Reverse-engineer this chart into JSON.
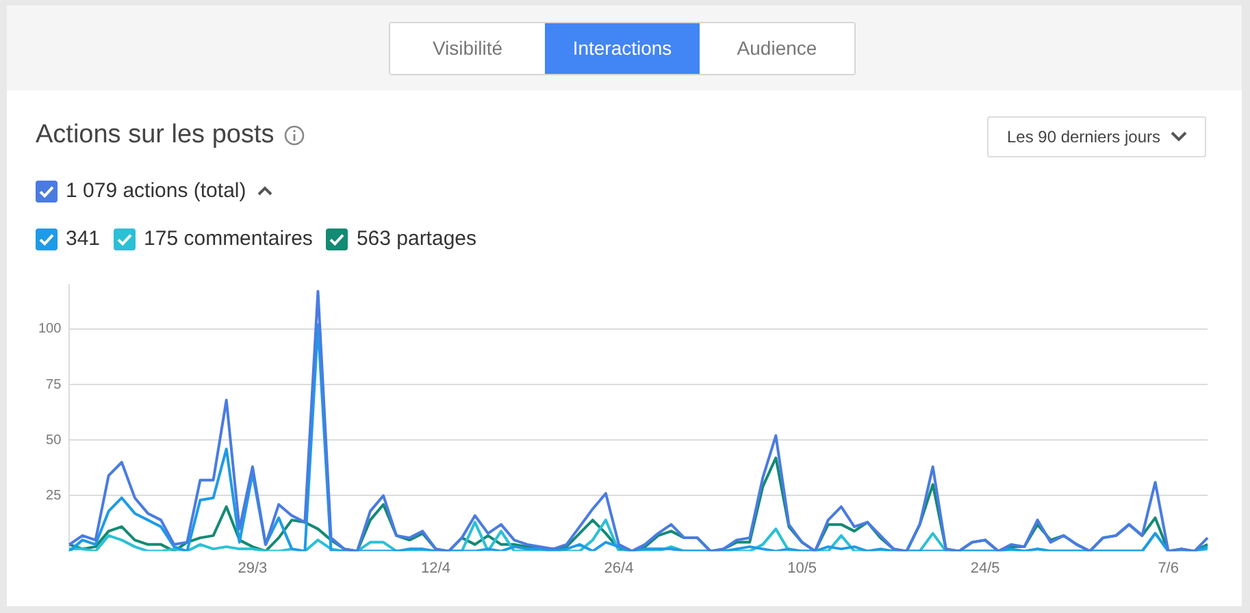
{
  "chart_data": {
    "type": "line",
    "title": "Actions sur les posts",
    "annotations": [
      "Visibilité",
      "Interactions",
      "Audience",
      "Les 90 derniers jours"
    ],
    "categories": [
      null,
      null,
      null,
      null,
      null,
      null,
      null,
      null,
      null,
      null,
      null,
      null,
      null,
      null,
      "29/3",
      null,
      null,
      null,
      null,
      null,
      null,
      null,
      null,
      null,
      null,
      null,
      null,
      null,
      "12/4",
      null,
      null,
      null,
      null,
      null,
      null,
      null,
      null,
      null,
      null,
      null,
      null,
      null,
      "26/4",
      null,
      null,
      null,
      null,
      null,
      null,
      null,
      null,
      null,
      null,
      null,
      null,
      null,
      "10/5",
      null,
      null,
      null,
      null,
      null,
      null,
      null,
      null,
      null,
      null,
      null,
      null,
      null,
      "24/5",
      null,
      null,
      null,
      null,
      null,
      null,
      null,
      null,
      null,
      null,
      null,
      null,
      null,
      "7/6",
      null,
      null,
      null
    ],
    "series": [
      {
        "name": "1 079 actions (total)",
        "color": "#4a7be0",
        "values": [
          3,
          7,
          5,
          34,
          40,
          24,
          17,
          14,
          3,
          4,
          32,
          32,
          68,
          10,
          38,
          3,
          21,
          16,
          13,
          117,
          6,
          1,
          0,
          18,
          25,
          7,
          6,
          9,
          1,
          0,
          6,
          16,
          8,
          12,
          5,
          3,
          2,
          1,
          3,
          11,
          19,
          26,
          3,
          0,
          3,
          8,
          12,
          6,
          6,
          0,
          1,
          5,
          6,
          33,
          52,
          12,
          4,
          0,
          14,
          20,
          11,
          13,
          7,
          1,
          0,
          12,
          38,
          1,
          0,
          4,
          5,
          0,
          3,
          2,
          14,
          4,
          7,
          3,
          0,
          6,
          7,
          12,
          7,
          31,
          0,
          1,
          0,
          6
        ]
      },
      {
        "name": "341",
        "color": "#1e9be6",
        "values": [
          0,
          5,
          3,
          18,
          24,
          17,
          14,
          11,
          2,
          0,
          23,
          24,
          46,
          4,
          35,
          3,
          15,
          1,
          0,
          102,
          0,
          0,
          0,
          0,
          0,
          0,
          1,
          1,
          0,
          0,
          0,
          0,
          1,
          0,
          2,
          1,
          1,
          0,
          1,
          3,
          0,
          4,
          2,
          0,
          1,
          1,
          1,
          0,
          0,
          0,
          0,
          1,
          2,
          1,
          0,
          1,
          0,
          0,
          2,
          1,
          2,
          0,
          1,
          0,
          0,
          0,
          0,
          0,
          0,
          0,
          0,
          0,
          1,
          0,
          1,
          0,
          0,
          0,
          0,
          0,
          0,
          0,
          0,
          8,
          0,
          0,
          0,
          2
        ]
      },
      {
        "name": "175 commentaires",
        "color": "#2bc0d6",
        "values": [
          1,
          1,
          0,
          7,
          5,
          2,
          0,
          0,
          1,
          0,
          3,
          1,
          2,
          1,
          1,
          0,
          0,
          1,
          0,
          5,
          1,
          0,
          0,
          4,
          4,
          0,
          0,
          0,
          0,
          0,
          0,
          13,
          0,
          9,
          0,
          0,
          0,
          0,
          0,
          0,
          5,
          14,
          0,
          0,
          0,
          0,
          2,
          0,
          0,
          0,
          0,
          0,
          0,
          3,
          10,
          0,
          0,
          0,
          0,
          7,
          0,
          0,
          0,
          0,
          0,
          0,
          8,
          0,
          0,
          0,
          0,
          0,
          0,
          0,
          1,
          0,
          0,
          0,
          0,
          0,
          0,
          0,
          0,
          8,
          0,
          0,
          0,
          1
        ]
      },
      {
        "name": "563 partages",
        "color": "#138a74",
        "values": [
          3,
          1,
          2,
          9,
          11,
          5,
          3,
          3,
          0,
          4,
          6,
          7,
          20,
          5,
          2,
          0,
          6,
          14,
          13,
          10,
          5,
          1,
          0,
          14,
          21,
          7,
          5,
          8,
          1,
          0,
          6,
          3,
          7,
          3,
          3,
          2,
          1,
          1,
          2,
          8,
          14,
          8,
          1,
          0,
          2,
          7,
          9,
          6,
          6,
          0,
          1,
          4,
          4,
          29,
          42,
          11,
          4,
          0,
          12,
          12,
          9,
          13,
          6,
          1,
          0,
          12,
          30,
          1,
          0,
          4,
          5,
          0,
          2,
          2,
          12,
          5,
          7,
          3,
          0,
          6,
          7,
          12,
          7,
          15,
          0,
          1,
          0,
          3
        ]
      }
    ],
    "ylim": [
      0,
      120
    ],
    "yticks": [
      25,
      50,
      75,
      100
    ],
    "grid": "y",
    "legend": "top left",
    "marker": "none",
    "line_style": "solid"
  }
}
